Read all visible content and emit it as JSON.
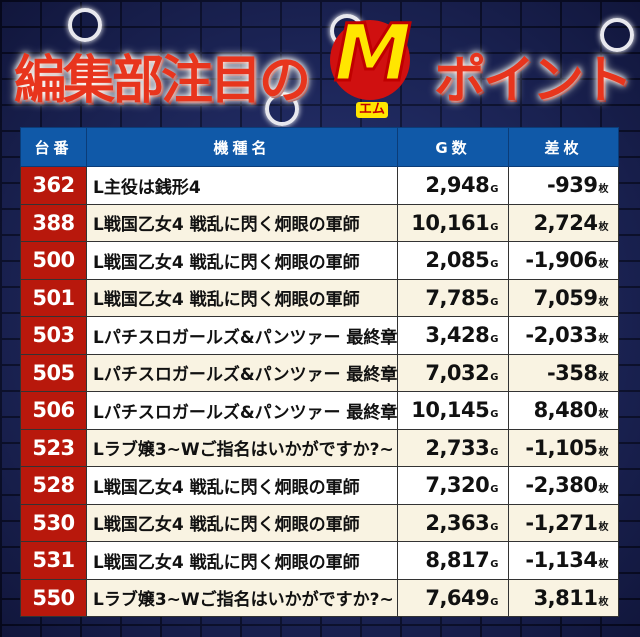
{
  "banner": {
    "title_left": "編集部注目の",
    "logo_letter": "M",
    "logo_sub": "エム",
    "title_right": "ポイント"
  },
  "colors": {
    "header_bg": "#1059a8",
    "number_bg": "#b8180c",
    "row_alt": "#f9f3e2",
    "title": "#e8351d",
    "logo": "#ffe600"
  },
  "table": {
    "headers": [
      "台番",
      "機種名",
      "G数",
      "差枚"
    ],
    "units": {
      "games": "G",
      "diff": "枚"
    },
    "rows": [
      {
        "no": "362",
        "name": "L主役は銭形4",
        "games": "2,948",
        "diff": "-939"
      },
      {
        "no": "388",
        "name": "L戦国乙女4 戦乱に閃く炯眼の軍師",
        "games": "10,161",
        "diff": "2,724"
      },
      {
        "no": "500",
        "name": "L戦国乙女4 戦乱に閃く炯眼の軍師",
        "games": "2,085",
        "diff": "-1,906"
      },
      {
        "no": "501",
        "name": "L戦国乙女4 戦乱に閃く炯眼の軍師",
        "games": "7,785",
        "diff": "7,059"
      },
      {
        "no": "503",
        "name": "Lパチスロガールズ&パンツァー 最終章",
        "games": "3,428",
        "diff": "-2,033"
      },
      {
        "no": "505",
        "name": "Lパチスロガールズ&パンツァー 最終章",
        "games": "7,032",
        "diff": "-358"
      },
      {
        "no": "506",
        "name": "Lパチスロガールズ&パンツァー 最終章",
        "games": "10,145",
        "diff": "8,480"
      },
      {
        "no": "523",
        "name": "Lラブ嬢3~Wご指名はいかがですか?~",
        "games": "2,733",
        "diff": "-1,105"
      },
      {
        "no": "528",
        "name": "L戦国乙女4 戦乱に閃く炯眼の軍師",
        "games": "7,320",
        "diff": "-2,380"
      },
      {
        "no": "530",
        "name": "L戦国乙女4 戦乱に閃く炯眼の軍師",
        "games": "2,363",
        "diff": "-1,271"
      },
      {
        "no": "531",
        "name": "L戦国乙女4 戦乱に閃く炯眼の軍師",
        "games": "8,817",
        "diff": "-1,134"
      },
      {
        "no": "550",
        "name": "Lラブ嬢3~Wご指名はいかがですか?~",
        "games": "7,649",
        "diff": "3,811"
      }
    ]
  }
}
